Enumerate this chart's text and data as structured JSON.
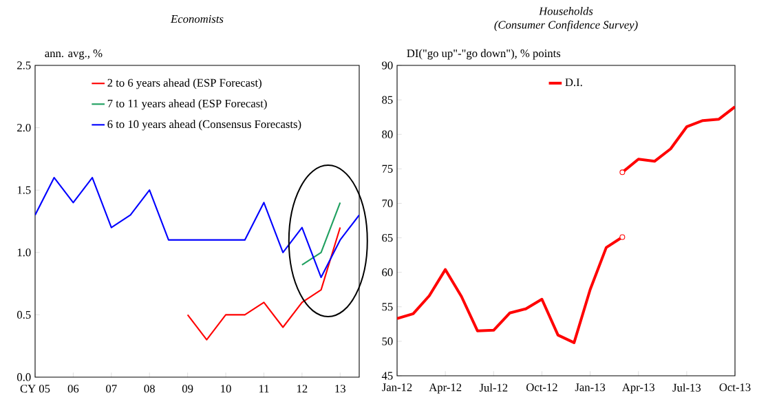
{
  "chart_data": [
    {
      "type": "line",
      "title": "Economists",
      "ylabel": "ann. avg., %",
      "xlim": [
        2005,
        2013.5
      ],
      "xticks": [
        {
          "value": 2005,
          "label": "CY 05"
        },
        {
          "value": 2006,
          "label": "06"
        },
        {
          "value": 2007,
          "label": "07"
        },
        {
          "value": 2008,
          "label": "08"
        },
        {
          "value": 2009,
          "label": "09"
        },
        {
          "value": 2010,
          "label": "10"
        },
        {
          "value": 2011,
          "label": "11"
        },
        {
          "value": 2012,
          "label": "12"
        },
        {
          "value": 2013,
          "label": "13"
        }
      ],
      "ylim": [
        0,
        2.5
      ],
      "yticks": [
        {
          "value": 0,
          "label": "0.0"
        },
        {
          "value": 0.5,
          "label": "0.5"
        },
        {
          "value": 1,
          "label": "1.0"
        },
        {
          "value": 1.5,
          "label": "1.5"
        },
        {
          "value": 2,
          "label": "2.0"
        },
        {
          "value": 2.5,
          "label": "2.5"
        }
      ],
      "legend": "top",
      "grid": false,
      "marker": "none",
      "line_style": "solid",
      "series": [
        {
          "name": "2 to 6 years ahead (ESP Forecast)",
          "color": "#ff0000",
          "x": [
            2009,
            2009.5,
            2010,
            2010.5,
            2011,
            2011.5,
            2012,
            2012.5,
            2013
          ],
          "values": [
            0.5,
            0.3,
            0.5,
            0.5,
            0.6,
            0.4,
            0.6,
            0.7,
            1.2
          ]
        },
        {
          "name": "7 to 11 years ahead (ESP Forecast)",
          "color": "#20a060",
          "x": [
            2012,
            2012.5,
            2013
          ],
          "values": [
            0.9,
            1.0,
            1.4
          ]
        },
        {
          "name": "6 to 10 years ahead (Consensus Forecasts)",
          "color": "#0000ff",
          "x": [
            2005,
            2005.5,
            2006,
            2006.5,
            2007,
            2007.5,
            2008,
            2008.5,
            2009,
            2009.5,
            2010,
            2010.5,
            2011,
            2011.5,
            2012,
            2012.5,
            2013,
            2013.5
          ],
          "values": [
            1.3,
            1.6,
            1.4,
            1.6,
            1.2,
            1.3,
            1.5,
            1.1,
            1.1,
            1.1,
            1.1,
            1.1,
            1.4,
            1.0,
            1.2,
            0.8,
            1.1,
            1.3
          ]
        }
      ]
    },
    {
      "type": "line",
      "title": "Households",
      "subtitle": "(Consumer Confidence Survey)",
      "ylabel": "DI(\"go up\"-\"go down\"), % points",
      "xlim": [
        "2012-01",
        "2013-10"
      ],
      "xticks": [
        {
          "value": "2012-01",
          "label": "Jan-12"
        },
        {
          "value": "2012-04",
          "label": "Apr-12"
        },
        {
          "value": "2012-07",
          "label": "Jul-12"
        },
        {
          "value": "2012-10",
          "label": "Oct-12"
        },
        {
          "value": "2013-01",
          "label": "Jan-13"
        },
        {
          "value": "2013-04",
          "label": "Apr-13"
        },
        {
          "value": "2013-07",
          "label": "Jul-13"
        },
        {
          "value": "2013-10",
          "label": "Oct-13"
        }
      ],
      "ylim": [
        45,
        90
      ],
      "yticks": [
        45,
        50,
        55,
        60,
        65,
        70,
        75,
        80,
        85,
        90
      ],
      "legend": "top",
      "grid": false,
      "marker": "none",
      "line_style": "solid",
      "series": [
        {
          "name": "D.I.",
          "color": "#ff0000",
          "x": [
            "2012-01",
            "2012-02",
            "2012-03",
            "2012-04",
            "2012-05",
            "2012-06",
            "2012-07",
            "2012-08",
            "2012-09",
            "2012-10",
            "2012-11",
            "2012-12",
            "2013-01",
            "2013-02",
            "2013-03"
          ],
          "values": [
            53.3,
            54.0,
            56.6,
            60.4,
            56.5,
            51.5,
            51.6,
            54.1,
            54.7,
            56.1,
            50.9,
            49.8,
            57.5,
            63.6,
            65.1
          ]
        },
        {
          "color": "#ff0000",
          "x": [
            "2013-03",
            "2013-04",
            "2013-05",
            "2013-06",
            "2013-07",
            "2013-08",
            "2013-09",
            "2013-10"
          ],
          "values": [
            74.5,
            76.4,
            76.1,
            77.9,
            81.1,
            82.0,
            82.2,
            84.0
          ]
        },
        {
          "type": "scatter",
          "marker": "circle",
          "color": "#ff0000",
          "x": [
            "2013-03",
            "2013-03"
          ],
          "values": [
            65.1,
            74.5
          ]
        }
      ]
    }
  ]
}
